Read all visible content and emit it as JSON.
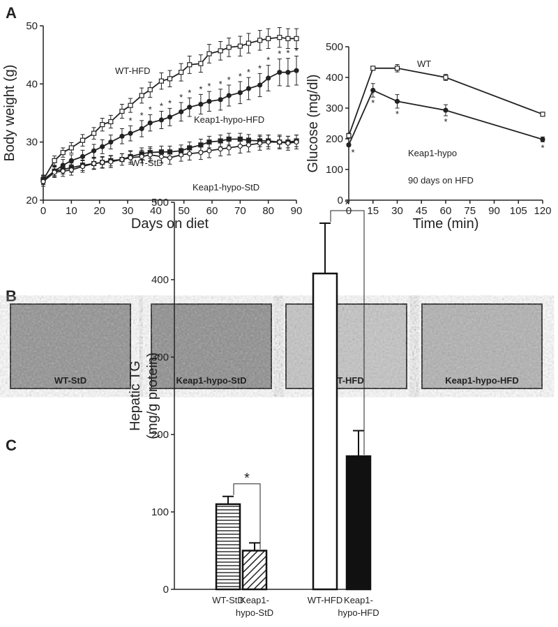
{
  "panels": [
    "A",
    "B",
    "C"
  ],
  "micrographs": [
    "WT-StD",
    "Keap1-hypo-StD",
    "WT-HFD",
    "Keap1-hypo-HFD"
  ],
  "chart_data": [
    {
      "type": "line",
      "x_label": "Days on diet",
      "y_label": "Body weight (g)",
      "x": [
        0,
        4,
        7,
        10,
        14,
        18,
        21,
        24,
        28,
        31,
        35,
        38,
        42,
        45,
        49,
        52,
        56,
        59,
        63,
        66,
        70,
        73,
        77,
        80,
        84,
        87,
        90
      ],
      "series": [
        {
          "name": "WT-HFD",
          "color": "#222222",
          "marker": "open-square",
          "values": [
            23.5,
            26.8,
            28.2,
            29,
            30.3,
            31.5,
            33,
            33.5,
            35.3,
            36.3,
            38,
            39,
            40.5,
            40.9,
            42,
            43.3,
            43.5,
            45.2,
            45.7,
            46.3,
            46.5,
            47,
            47.5,
            47.8,
            48,
            47.8,
            47.8
          ],
          "errors": [
            0.8,
            0.8,
            0.8,
            0.9,
            1,
            1,
            1.1,
            1.1,
            1.2,
            1.2,
            1.3,
            1.3,
            1.4,
            1.4,
            1.5,
            1.5,
            1.5,
            1.6,
            1.6,
            1.6,
            1.7,
            1.7,
            1.7,
            1.7,
            1.7,
            1.7,
            1.7
          ]
        },
        {
          "name": "Keap1-hypo-HFD",
          "color": "#222222",
          "marker": "filled-circle",
          "values": [
            23.5,
            25,
            26,
            26.8,
            27.5,
            28.5,
            29.2,
            30,
            31,
            31.5,
            32.3,
            33.3,
            33.8,
            34.3,
            35.2,
            36,
            36.5,
            37,
            37.3,
            38,
            38.5,
            39.2,
            39.8,
            41,
            42,
            42,
            42.3
          ],
          "errors": [
            0.8,
            0.9,
            1,
            1,
            1.1,
            1.1,
            1.2,
            1.2,
            1.3,
            1.3,
            1.4,
            1.4,
            1.5,
            1.5,
            1.6,
            1.6,
            1.7,
            1.7,
            1.8,
            1.8,
            1.9,
            1.9,
            2,
            2.2,
            2.3,
            2.4,
            2.5
          ]
        },
        {
          "name": "WT-StD",
          "color": "#222222",
          "marker": "filled-square",
          "values": [
            23.5,
            25,
            25.3,
            25.6,
            26,
            26.3,
            26.5,
            26.8,
            27,
            27.5,
            28,
            28.2,
            28.3,
            28.3,
            28.5,
            29,
            29.5,
            30,
            30.2,
            30.5,
            30.5,
            30.3,
            30.2,
            30.2,
            30,
            30,
            30.2
          ],
          "errors": [
            0.7,
            0.8,
            0.8,
            0.8,
            0.9,
            0.9,
            0.9,
            0.9,
            1,
            1,
            1,
            1,
            1,
            1,
            1,
            1,
            1,
            1,
            1,
            1,
            1,
            1,
            1,
            1,
            1,
            1,
            1
          ]
        },
        {
          "name": "Keap1-hypo-StD",
          "color": "#222222",
          "marker": "open-circle",
          "values": [
            23.2,
            24.8,
            25,
            25.2,
            25.8,
            26.3,
            26.5,
            26.6,
            27,
            27.3,
            27.5,
            27.8,
            27.5,
            27.3,
            27.8,
            28,
            28.2,
            28.5,
            28.8,
            29,
            29.3,
            29.5,
            29.8,
            30,
            30,
            29.8,
            30
          ],
          "errors": [
            0.8,
            0.9,
            0.9,
            0.9,
            1,
            1,
            1,
            1,
            1,
            1.1,
            1.1,
            1.1,
            1.1,
            1.1,
            1.1,
            1.1,
            1.2,
            1.2,
            1.2,
            1.2,
            1.2,
            1.2,
            1.2,
            1.2,
            1.2,
            1.2,
            1.2
          ]
        }
      ],
      "significance": {
        "label": "*",
        "series": "Keap1-hypo-HFD",
        "position": "above",
        "x": [
          31,
          35,
          38,
          42,
          45,
          49,
          52,
          56,
          59,
          63,
          66,
          70,
          73,
          77,
          80,
          84,
          87,
          90
        ]
      },
      "xlim": [
        0,
        90
      ],
      "xticks": [
        0,
        10,
        20,
        30,
        40,
        50,
        60,
        70,
        80,
        90
      ],
      "ylim": [
        20,
        50
      ],
      "yticks": [
        20,
        30,
        40,
        50
      ]
    },
    {
      "type": "line",
      "x_label": "Time (min)",
      "y_label": "Glucose (mg/dl)",
      "annotation": "90 days on HFD",
      "x": [
        0,
        15,
        30,
        60,
        120
      ],
      "series": [
        {
          "name": "WT",
          "color": "#222222",
          "marker": "open-square",
          "values": [
            210,
            430,
            430,
            400,
            280
          ],
          "errors": [
            8,
            5,
            12,
            10,
            3
          ]
        },
        {
          "name": "Keap1-hypo",
          "color": "#222222",
          "marker": "filled-circle",
          "values": [
            180,
            358,
            322,
            293,
            198
          ],
          "errors": [
            5,
            22,
            22,
            18,
            8
          ]
        }
      ],
      "significance": {
        "label": "*",
        "series": "Keap1-hypo",
        "position": "below",
        "x": [
          0,
          15,
          30,
          60,
          120
        ]
      },
      "xlim": [
        0,
        120
      ],
      "xticks": [
        0,
        15,
        30,
        45,
        60,
        75,
        90,
        105,
        120
      ],
      "ylim": [
        0,
        500
      ],
      "yticks": [
        0,
        100,
        200,
        300,
        400,
        500
      ]
    },
    {
      "type": "bar",
      "y_label": [
        "Hepatic TG",
        "(mg/g protein)"
      ],
      "categories": [
        [
          "WT-StD"
        ],
        [
          "Keap1-",
          "hypo-StD"
        ],
        [
          "WT-HFD"
        ],
        [
          "Keap1-",
          "hypo-HFD"
        ]
      ],
      "values": [
        110,
        50,
        408,
        172
      ],
      "errors": [
        10,
        10,
        65,
        33
      ],
      "fills": [
        "horizontal-lines",
        "diagonal-lines",
        "none",
        "solid"
      ],
      "color": "#111111",
      "comparisons": [
        {
          "pair": [
            0,
            1
          ],
          "label": "*"
        },
        {
          "pair": [
            2,
            3
          ],
          "label": "*"
        }
      ],
      "ylim": [
        0,
        500
      ],
      "yticks": [
        0,
        100,
        200,
        300,
        400,
        500
      ]
    }
  ]
}
